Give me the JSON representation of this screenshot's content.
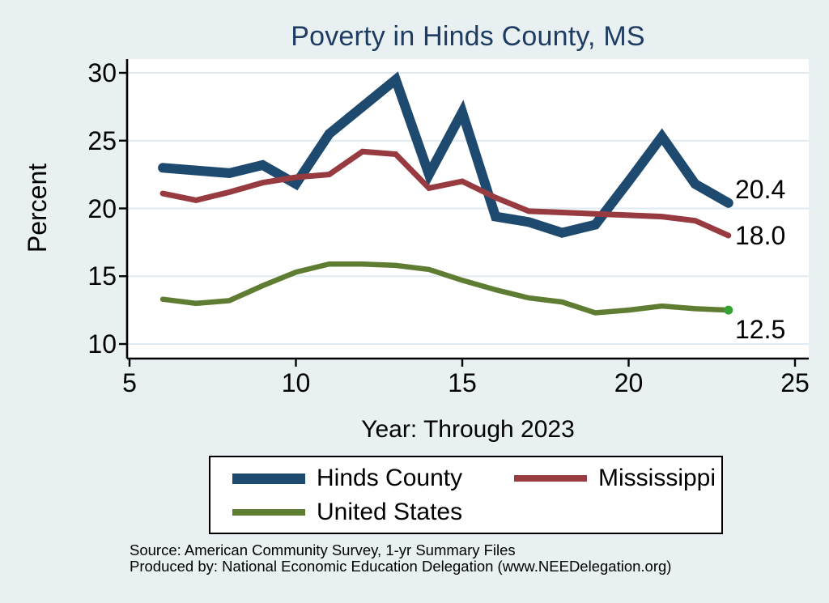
{
  "page": {
    "background_color": "#e8f0f2",
    "plot_background_color": "#ffffff",
    "gridline_color": "#dfeaf2",
    "axis_color": "#000000"
  },
  "title": {
    "text": "Poverty in Hinds County, MS",
    "color": "#1e3c61"
  },
  "chart_data": {
    "type": "line",
    "title": "Poverty in Hinds County, MS",
    "xlabel": "Year: Through 2023",
    "ylabel": "Percent",
    "grid": true,
    "legend_position": "bottom",
    "x": [
      6,
      7,
      8,
      9,
      10,
      11,
      12,
      13,
      14,
      15,
      16,
      17,
      18,
      19,
      20,
      21,
      22,
      23
    ],
    "x_axis": {
      "ticks": [
        5,
        10,
        15,
        20,
        25
      ],
      "range": [
        4.9,
        25.4
      ]
    },
    "y_axis": {
      "ticks": [
        10,
        15,
        20,
        25,
        30
      ],
      "range": [
        9,
        31
      ]
    },
    "series": [
      {
        "name": "Hinds County",
        "color": "#1d4a6e",
        "stroke_width": 12,
        "end_label": "20.4",
        "values": [
          23.0,
          22.8,
          22.6,
          23.2,
          21.8,
          25.5,
          27.5,
          29.5,
          22.5,
          27.1,
          19.4,
          19.0,
          18.2,
          18.8,
          22.0,
          25.3,
          21.8,
          20.4
        ]
      },
      {
        "name": "Mississippi",
        "color": "#973b41",
        "stroke_width": 7,
        "end_label": "18.0",
        "values": [
          21.1,
          20.6,
          21.2,
          21.9,
          22.3,
          22.5,
          24.2,
          24.0,
          21.5,
          22.0,
          20.8,
          19.8,
          19.7,
          19.6,
          19.5,
          19.4,
          19.1,
          18.0
        ]
      },
      {
        "name": "United States",
        "color": "#5f7d32",
        "stroke_width": 6.5,
        "end_label": "12.5",
        "end_marker": true,
        "end_marker_color": "#35a135",
        "values": [
          13.3,
          13.0,
          13.2,
          14.3,
          15.3,
          15.9,
          15.9,
          15.8,
          15.5,
          14.7,
          14.0,
          13.4,
          13.1,
          12.3,
          12.5,
          12.8,
          12.6,
          12.5
        ]
      }
    ]
  },
  "legend": {
    "row1_col1": "Hinds County",
    "row1_col2": "Mississippi",
    "row2_col1": "United States"
  },
  "source": {
    "line1": "Source: American Community Survey, 1-yr Summary Files",
    "line2": "Produced by: National Economic Education Delegation (www.NEEDelegation.org)"
  }
}
